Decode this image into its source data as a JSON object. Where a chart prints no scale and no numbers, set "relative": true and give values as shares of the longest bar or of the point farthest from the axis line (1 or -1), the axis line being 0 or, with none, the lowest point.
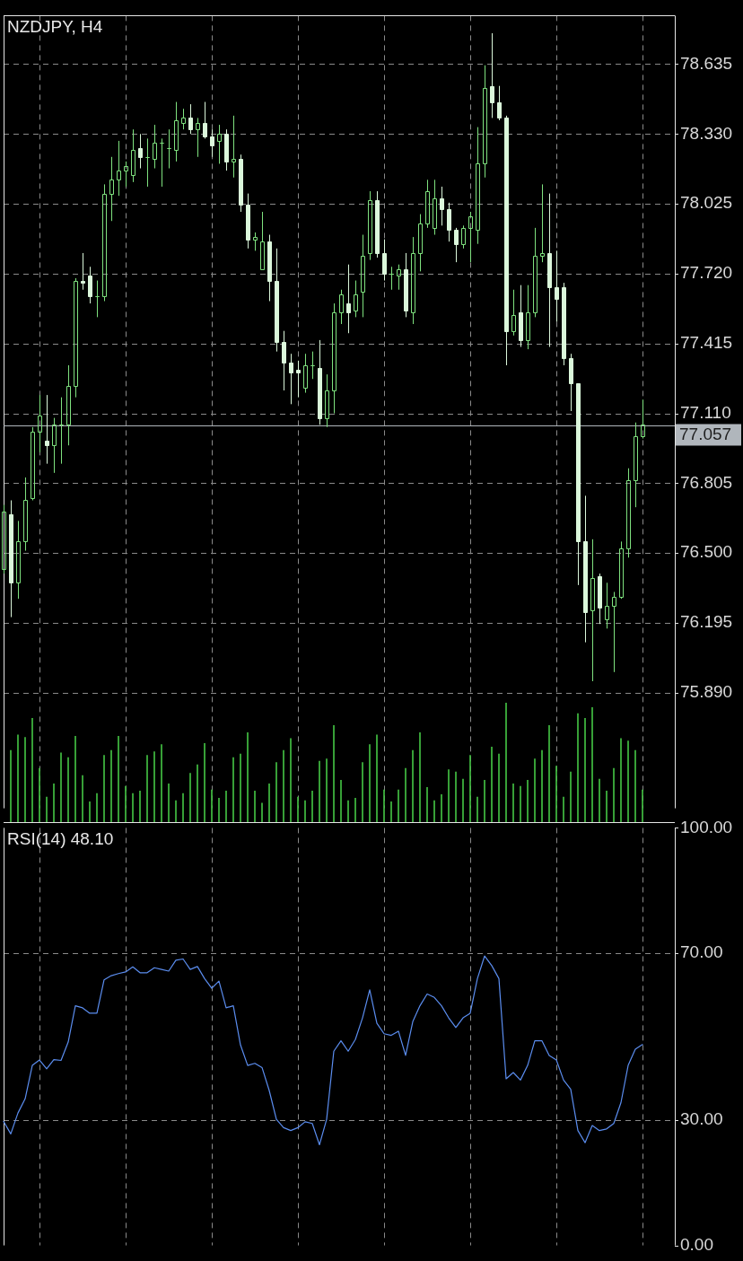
{
  "chart_data": [
    {
      "type": "candlestick",
      "title": "NZDJPY, H4",
      "grid": true,
      "categories": [
        null,
        null,
        null,
        null,
        null,
        null,
        null,
        null,
        null,
        null,
        null,
        null,
        null,
        null,
        null,
        null,
        null,
        null,
        null,
        null,
        null,
        null,
        null,
        null,
        null,
        null,
        null,
        null,
        null,
        null,
        null,
        null,
        null,
        null,
        null,
        null,
        null,
        null,
        null,
        null,
        null,
        null,
        null,
        null,
        null,
        null,
        null,
        null,
        null,
        null,
        null,
        null,
        null,
        null,
        null,
        null,
        null,
        null,
        null,
        null,
        null,
        null,
        null,
        null,
        null,
        null,
        null,
        null,
        null,
        null,
        null,
        null,
        null,
        null,
        null,
        null,
        null,
        null,
        null,
        null,
        null,
        null,
        null,
        null,
        null,
        null,
        null,
        null,
        null,
        null,
        null,
        null,
        null,
        null
      ],
      "ohlc": [
        [
          76.43,
          76.71,
          76.41,
          76.68
        ],
        [
          76.67,
          76.73,
          76.22,
          76.37
        ],
        [
          76.37,
          76.64,
          76.3,
          76.55
        ],
        [
          76.55,
          76.83,
          76.51,
          76.73
        ],
        [
          76.74,
          77.05,
          76.73,
          77.03
        ],
        [
          77.03,
          77.19,
          76.94,
          77.1
        ],
        [
          76.99,
          77.19,
          76.89,
          76.97
        ],
        [
          76.97,
          77.09,
          76.85,
          77.06
        ],
        [
          77.06,
          77.18,
          76.89,
          77.06
        ],
        [
          77.06,
          77.32,
          76.97,
          77.23
        ],
        [
          77.23,
          77.7,
          77.18,
          77.69
        ],
        [
          77.69,
          77.81,
          77.65,
          77.68
        ],
        [
          77.71,
          77.75,
          77.59,
          77.62
        ],
        [
          77.62,
          77.69,
          77.53,
          77.62
        ],
        [
          77.62,
          78.11,
          77.6,
          78.07
        ],
        [
          78.07,
          78.23,
          77.95,
          78.13
        ],
        [
          78.13,
          78.3,
          78.06,
          78.17
        ],
        [
          78.17,
          78.21,
          78.1,
          78.19
        ],
        [
          78.15,
          78.35,
          78.12,
          78.26
        ],
        [
          78.27,
          78.33,
          78.18,
          78.23
        ],
        [
          78.23,
          78.31,
          78.1,
          78.23
        ],
        [
          78.22,
          78.37,
          78.18,
          78.29
        ],
        [
          78.29,
          78.31,
          78.1,
          78.29
        ],
        [
          78.27,
          78.35,
          78.18,
          78.27
        ],
        [
          78.26,
          78.47,
          78.21,
          78.39
        ],
        [
          78.38,
          78.44,
          78.35,
          78.4
        ],
        [
          78.4,
          78.46,
          78.33,
          78.35
        ],
        [
          78.35,
          78.4,
          78.23,
          78.38
        ],
        [
          78.38,
          78.47,
          78.31,
          78.32
        ],
        [
          78.32,
          78.35,
          78.23,
          78.28
        ],
        [
          78.3,
          78.37,
          78.2,
          78.33
        ],
        [
          78.33,
          78.35,
          78.17,
          78.21
        ],
        [
          78.21,
          78.41,
          78.14,
          78.22
        ],
        [
          78.22,
          78.24,
          77.99,
          78.02
        ],
        [
          78.02,
          78.07,
          77.83,
          77.87
        ],
        [
          77.87,
          77.9,
          77.82,
          77.88
        ],
        [
          77.74,
          77.99,
          77.74,
          77.86
        ],
        [
          77.86,
          77.89,
          77.6,
          77.69
        ],
        [
          77.69,
          77.83,
          77.38,
          77.42
        ],
        [
          77.42,
          77.47,
          77.21,
          77.33
        ],
        [
          77.33,
          77.37,
          77.15,
          77.29
        ],
        [
          77.3,
          77.34,
          77.18,
          77.29
        ],
        [
          77.22,
          77.37,
          77.2,
          77.32
        ],
        [
          77.32,
          77.38,
          77.26,
          77.32
        ],
        [
          77.31,
          77.43,
          77.06,
          77.09
        ],
        [
          77.09,
          77.28,
          77.05,
          77.21
        ],
        [
          77.21,
          77.59,
          77.11,
          77.55
        ],
        [
          77.55,
          77.65,
          77.5,
          77.63
        ],
        [
          77.59,
          77.76,
          77.46,
          77.55
        ],
        [
          77.56,
          77.69,
          77.53,
          77.63
        ],
        [
          77.64,
          77.89,
          77.53,
          77.8
        ],
        [
          77.81,
          78.08,
          77.78,
          78.04
        ],
        [
          78.04,
          78.08,
          77.79,
          77.81
        ],
        [
          77.81,
          77.87,
          77.69,
          77.72
        ],
        [
          77.72,
          77.75,
          77.65,
          77.72
        ],
        [
          77.71,
          77.76,
          77.65,
          77.74
        ],
        [
          77.74,
          77.81,
          77.53,
          77.56
        ],
        [
          77.55,
          77.88,
          77.5,
          77.81
        ],
        [
          77.81,
          77.98,
          77.73,
          77.94
        ],
        [
          77.94,
          78.13,
          77.92,
          78.08
        ],
        [
          77.92,
          78.13,
          77.89,
          78.05
        ],
        [
          78.05,
          78.1,
          77.93,
          78.0
        ],
        [
          78.0,
          78.03,
          77.86,
          77.91
        ],
        [
          77.91,
          77.92,
          77.77,
          77.85
        ],
        [
          77.85,
          77.93,
          77.83,
          77.92
        ],
        [
          77.92,
          77.99,
          77.77,
          77.97
        ],
        [
          77.91,
          78.36,
          77.85,
          78.2
        ],
        [
          78.2,
          78.63,
          78.14,
          78.53
        ],
        [
          78.54,
          78.77,
          78.4,
          78.47
        ],
        [
          78.47,
          78.54,
          78.39,
          78.4
        ],
        [
          78.4,
          78.41,
          77.32,
          77.47
        ],
        [
          77.47,
          77.65,
          77.45,
          77.54
        ],
        [
          77.55,
          77.67,
          77.4,
          77.43
        ],
        [
          77.43,
          77.67,
          77.39,
          77.55
        ],
        [
          77.55,
          77.92,
          77.53,
          77.8
        ],
        [
          77.8,
          78.11,
          77.77,
          77.81
        ],
        [
          77.81,
          78.07,
          77.4,
          77.66
        ],
        [
          77.66,
          77.82,
          77.51,
          77.61
        ],
        [
          77.66,
          77.68,
          77.32,
          77.35
        ],
        [
          77.35,
          77.37,
          77.12,
          77.24
        ],
        [
          77.24,
          77.24,
          76.36,
          76.55
        ],
        [
          76.55,
          76.75,
          76.11,
          76.24
        ],
        [
          76.25,
          76.56,
          75.94,
          76.39
        ],
        [
          76.4,
          76.41,
          76.19,
          76.26
        ],
        [
          76.21,
          76.37,
          76.17,
          76.27
        ],
        [
          76.27,
          76.33,
          75.98,
          76.31
        ],
        [
          76.31,
          76.55,
          76.3,
          76.52
        ],
        [
          76.52,
          76.87,
          76.48,
          76.82
        ],
        [
          76.82,
          77.07,
          76.7,
          77.01
        ],
        [
          77.01,
          77.17,
          77.0,
          77.06
        ],
        null,
        null,
        null,
        null
      ],
      "colors": [
        "#7fe27f",
        "#dbf7db",
        "#7fe27f",
        "#7fe27f",
        "#7fe27f",
        "#7fe27f",
        "#dbf7db",
        "#7fe27f",
        "#7fe27f",
        "#7fe27f",
        "#7fe27f",
        "#dbf7db",
        "#dbf7db",
        "#7fe27f",
        "#7fe27f",
        "#7fe27f",
        "#7fe27f",
        "#7fe27f",
        "#7fe27f",
        "#dbf7db",
        "#7fe27f",
        "#7fe27f",
        "#7fe27f",
        "#7fe27f",
        "#7fe27f",
        "#7fe27f",
        "#dbf7db",
        "#7fe27f",
        "#dbf7db",
        "#dbf7db",
        "#7fe27f",
        "#dbf7db",
        "#7fe27f",
        "#dbf7db",
        "#dbf7db",
        "#7fe27f",
        "#7fe27f",
        "#dbf7db",
        "#dbf7db",
        "#dbf7db",
        "#dbf7db",
        "#dbf7db",
        "#7fe27f",
        "#7fe27f",
        "#dbf7db",
        "#7fe27f",
        "#7fe27f",
        "#7fe27f",
        "#dbf7db",
        "#7fe27f",
        "#7fe27f",
        "#7fe27f",
        "#dbf7db",
        "#dbf7db",
        "#7fe27f",
        "#7fe27f",
        "#dbf7db",
        "#7fe27f",
        "#7fe27f",
        "#7fe27f",
        "#7fe27f",
        "#dbf7db",
        "#dbf7db",
        "#dbf7db",
        "#7fe27f",
        "#7fe27f",
        "#7fe27f",
        "#7fe27f",
        "#dbf7db",
        "#dbf7db",
        "#dbf7db",
        "#7fe27f",
        "#dbf7db",
        "#7fe27f",
        "#7fe27f",
        "#7fe27f",
        "#dbf7db",
        "#dbf7db",
        "#dbf7db",
        "#dbf7db",
        "#dbf7db",
        "#dbf7db",
        "#7fe27f",
        "#dbf7db",
        "#7fe27f",
        "#7fe27f",
        "#7fe27f",
        "#7fe27f",
        "#7fe27f",
        "#7fe27f",
        null,
        null,
        null,
        null
      ],
      "ylim": [
        75.385,
        78.847
      ],
      "yticks": [
        {
          "value": 75.89,
          "label": "75.890"
        },
        76.195,
        {
          "value": 76.5,
          "label": "76.500"
        },
        76.805,
        {
          "value": 77.11,
          "label": "77.110"
        },
        77.415,
        {
          "value": 77.72,
          "label": "77.720"
        },
        78.025,
        {
          "value": 78.33,
          "label": "78.330"
        },
        78.635
      ],
      "ref_lines": [
        {
          "axis": "y",
          "value": 77.057,
          "label": "77.057",
          "color": "#b0b6bc"
        }
      ]
    },
    {
      "type": "bar",
      "relative": true,
      "color": "#43c143",
      "categories": [
        null,
        null,
        null,
        null,
        null,
        null,
        null,
        null,
        null,
        null,
        null,
        null,
        null,
        null,
        null,
        null,
        null,
        null,
        null,
        null,
        null,
        null,
        null,
        null,
        null,
        null,
        null,
        null,
        null,
        null,
        null,
        null,
        null,
        null,
        null,
        null,
        null,
        null,
        null,
        null,
        null,
        null,
        null,
        null,
        null,
        null,
        null,
        null,
        null,
        null,
        null,
        null,
        null,
        null,
        null,
        null,
        null,
        null,
        null,
        null,
        null,
        null,
        null,
        null,
        null,
        null,
        null,
        null,
        null,
        null,
        null,
        null,
        null,
        null,
        null,
        null,
        null,
        null,
        null,
        null,
        null,
        null,
        null,
        null,
        null,
        null,
        null,
        null,
        null,
        null,
        null,
        null,
        null,
        null
      ],
      "values": [
        null,
        0.6,
        0.73,
        0.71,
        0.87,
        0.45,
        0.21,
        0.32,
        0.58,
        0.54,
        0.72,
        0.39,
        0.17,
        0.24,
        0.56,
        0.6,
        0.72,
        0.3,
        0.24,
        0.26,
        0.56,
        0.59,
        0.65,
        0.32,
        0.18,
        0.24,
        0.41,
        0.48,
        0.66,
        0.27,
        0.2,
        0.26,
        0.54,
        0.57,
        0.75,
        0.26,
        0.16,
        0.32,
        0.5,
        0.6,
        0.7,
        0.21,
        0.18,
        0.26,
        0.51,
        0.53,
        0.81,
        0.35,
        0.18,
        0.2,
        0.5,
        0.65,
        0.73,
        0.27,
        0.17,
        0.27,
        0.45,
        0.6,
        0.75,
        0.29,
        0.18,
        0.23,
        0.44,
        0.42,
        0.36,
        0.56,
        0.21,
        0.35,
        0.63,
        0.57,
        1,
        0.32,
        0.3,
        0.35,
        0.53,
        0.6,
        0.81,
        0.47,
        0.21,
        0.42,
        0.91,
        0.87,
        0.96,
        0.36,
        0.26,
        0.45,
        0.7,
        0.68,
        0.6,
        0.27,
        null,
        null,
        null,
        null
      ]
    },
    {
      "type": "line",
      "title": "RSI(14) 48.10",
      "color": "#5b8def",
      "grid": true,
      "marker": "none",
      "categories": [
        null,
        null,
        null,
        null,
        null,
        null,
        null,
        null,
        null,
        null,
        null,
        null,
        null,
        null,
        null,
        null,
        null,
        null,
        null,
        null,
        null,
        null,
        null,
        null,
        null,
        null,
        null,
        null,
        null,
        null,
        null,
        null,
        null,
        null,
        null,
        null,
        null,
        null,
        null,
        null,
        null,
        null,
        null,
        null,
        null,
        null,
        null,
        null,
        null,
        null,
        null,
        null,
        null,
        null,
        null,
        null,
        null,
        null,
        null,
        null,
        null,
        null,
        null,
        null,
        null,
        null,
        null,
        null,
        null,
        null,
        null,
        null,
        null,
        null,
        null,
        null,
        null,
        null,
        null,
        null,
        null,
        null,
        null,
        null,
        null,
        null,
        null,
        null,
        null,
        null,
        null,
        null,
        null,
        null
      ],
      "values": [
        29.7,
        26.7,
        31.7,
        35.1,
        43.1,
        44.4,
        42.3,
        44.5,
        44.3,
        48.7,
        57.4,
        56.9,
        55.6,
        55.6,
        63.6,
        64.6,
        65.1,
        65.5,
        66.7,
        65.3,
        65.3,
        66.5,
        66.1,
        65.7,
        68.3,
        68.6,
        66.1,
        66.8,
        63.9,
        61.6,
        63.3,
        56.9,
        57.4,
        48.0,
        43.1,
        43.6,
        42.6,
        37.1,
        30.2,
        28.2,
        27.5,
        28.2,
        29.6,
        29.2,
        24.1,
        30.2,
        46.5,
        49.0,
        46.5,
        49.3,
        54.5,
        61.2,
        53.2,
        50.7,
        50.3,
        51.3,
        45.5,
        53.6,
        57.4,
        60.2,
        59.4,
        57.4,
        54.5,
        52.2,
        54.5,
        55.6,
        63.9,
        69.3,
        67.0,
        63.9,
        39.9,
        41.4,
        39.6,
        43.1,
        49.0,
        49.0,
        45.5,
        44.4,
        39.6,
        37.4,
        27.5,
        24.6,
        28.7,
        27.5,
        27.9,
        29.2,
        34.2,
        43.1,
        47.0,
        48.1,
        null,
        null,
        null,
        null
      ],
      "ylim": [
        0,
        100
      ],
      "yticks": [
        {
          "value": 0,
          "label": "0.00"
        },
        {
          "value": 30,
          "label": "30.00"
        },
        {
          "value": 70,
          "label": "70.00"
        },
        {
          "value": 100,
          "label": "100.00"
        }
      ]
    }
  ]
}
